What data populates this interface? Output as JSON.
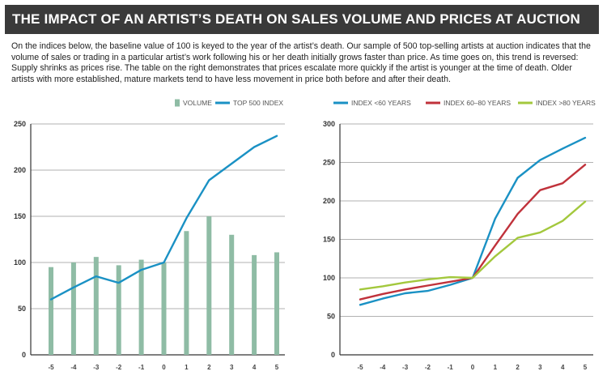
{
  "header": {
    "title": "THE IMPACT OF AN ARTIST’S DEATH ON SALES VOLUME AND PRICES AT AUCTION"
  },
  "intro": {
    "text": "On the indices below, the baseline value of 100 is keyed to the year of the artist’s death. Our sample of 500 top-selling artists at auction indicates that the volume of sales or trading in a particular artist’s work following his or her death initially grows faster than price. As time goes on, this trend is reversed: Supply shrinks as prices rise. The table on the right demonstrates that prices escalate more quickly if the artist is younger at the time of death. Older artists with more established, mature markets tend to have less movement in price both before and after their death."
  },
  "colors": {
    "volume": "#8fbca5",
    "top500": "#1a91c4",
    "lt60": "#1a91c4",
    "age6080": "#c0323b",
    "gt80": "#a3c83d",
    "grid": "#999999",
    "axis": "#333333"
  },
  "chart_data": [
    {
      "type": "bar+line",
      "categories": [
        "-5",
        "-4",
        "-3",
        "-2",
        "-1",
        "0",
        "1",
        "2",
        "3",
        "4",
        "5"
      ],
      "series": [
        {
          "name": "VOLUME",
          "kind": "bar",
          "values": [
            95,
            100,
            106,
            97,
            103,
            100,
            134,
            150,
            130,
            108,
            111
          ]
        },
        {
          "name": "TOP 500 INDEX",
          "kind": "line",
          "values": [
            60,
            73,
            85,
            78,
            92,
            100,
            148,
            189,
            207,
            225,
            237
          ]
        }
      ],
      "ylim": [
        0,
        250
      ],
      "yticks": [
        0,
        50,
        100,
        150,
        200,
        250
      ],
      "grid": true,
      "legend": "top"
    },
    {
      "type": "line",
      "categories": [
        "-5",
        "-4",
        "-3",
        "-2",
        "-1",
        "0",
        "1",
        "2",
        "3",
        "4",
        "5"
      ],
      "series": [
        {
          "name": "INDEX <60 YEARS",
          "values": [
            65,
            73,
            80,
            83,
            91,
            100,
            177,
            230,
            253,
            268,
            282
          ]
        },
        {
          "name": "INDEX 60–80 YEARS",
          "values": [
            72,
            79,
            85,
            90,
            95,
            100,
            142,
            183,
            214,
            223,
            247
          ]
        },
        {
          "name": "INDEX >80 YEARS",
          "values": [
            85,
            89,
            94,
            98,
            101,
            100,
            128,
            152,
            159,
            174,
            199
          ]
        }
      ],
      "ylim": [
        0,
        300
      ],
      "yticks": [
        0,
        50,
        100,
        150,
        200,
        250,
        300
      ],
      "grid": true,
      "legend": "top"
    }
  ]
}
